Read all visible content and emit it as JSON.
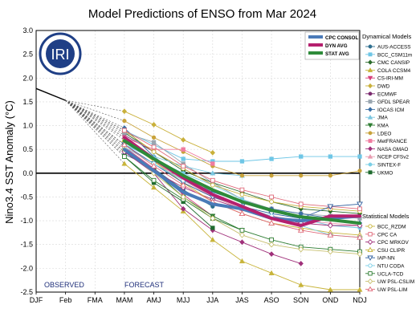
{
  "chart_data": {
    "type": "line",
    "title": "Model Predictions of ENSO from Mar 2024",
    "ylabel": "Nino3.4 SST Anomaly (°C)",
    "xlabel": "",
    "categories": [
      "DJF",
      "Feb",
      "FMA",
      "MAM",
      "AMJ",
      "MJJ",
      "JJA",
      "JAS",
      "ASO",
      "SON",
      "OND",
      "NDJ"
    ],
    "ylim": [
      -2.5,
      3.0
    ],
    "yticks": [
      "-2.5",
      "-2.0",
      "-1.5",
      "-1.0",
      "-0.5",
      "0.0",
      "0.5",
      "1.0",
      "1.5",
      "2.0",
      "2.5",
      "3.0"
    ],
    "grid": true,
    "observed_label": "OBSERVED",
    "forecast_label": "FORECAST",
    "logo_text": "IRI",
    "observed": {
      "x": [
        0,
        1
      ],
      "y": [
        1.78,
        1.53
      ]
    },
    "avg_legend_title": "",
    "avg_series": [
      {
        "name": "CPC CONSOL",
        "color": "#4a7ab8",
        "x": [
          3,
          4,
          5,
          6,
          7,
          8,
          9,
          10,
          11
        ],
        "y": [
          0.5,
          0.05,
          -0.4,
          -0.65,
          -0.75,
          -0.95,
          -1.0,
          -0.95,
          -0.9
        ]
      },
      {
        "name": "DYN AVG",
        "color": "#b5206e",
        "x": [
          3,
          4,
          5,
          6,
          7,
          8,
          9,
          10,
          11
        ],
        "y": [
          0.75,
          0.3,
          -0.1,
          -0.45,
          -0.7,
          -0.95,
          -1.1,
          -0.9,
          -0.9
        ]
      },
      {
        "name": "STAT AVG",
        "color": "#2e8b3a",
        "x": [
          3,
          4,
          5,
          6,
          7,
          8,
          9,
          10,
          11
        ],
        "y": [
          0.68,
          0.3,
          -0.05,
          -0.35,
          -0.6,
          -0.78,
          -0.92,
          -0.98,
          -1.05
        ]
      }
    ],
    "dynamical_title": "Dynamical Models",
    "dynamical_models": [
      {
        "name": "AUS-ACCESS",
        "color": "#2f6f8f",
        "marker": "circle",
        "x": [
          3,
          4,
          5,
          6
        ],
        "y": [
          0.4,
          0.1,
          -0.35,
          -0.7
        ]
      },
      {
        "name": "BCC_CSM11m",
        "color": "#6ec6e6",
        "marker": "square",
        "x": [
          3,
          4,
          5,
          6,
          7,
          8,
          9,
          10,
          11
        ],
        "y": [
          0.9,
          0.6,
          0.3,
          0.25,
          0.25,
          0.3,
          0.35,
          0.35,
          0.35
        ]
      },
      {
        "name": "CMC CANSIP",
        "color": "#2b6b2b",
        "marker": "diamond",
        "x": [
          3,
          4,
          5,
          6,
          7,
          8,
          9,
          10,
          11
        ],
        "y": [
          0.85,
          0.45,
          0.05,
          -0.2,
          -0.4,
          -0.6,
          -0.75,
          -0.8,
          -0.85
        ]
      },
      {
        "name": "COLA CCSM4",
        "color": "#c8b43a",
        "marker": "triangle-up",
        "x": [
          3,
          4,
          5,
          6,
          7,
          8,
          9,
          10,
          11
        ],
        "y": [
          0.2,
          -0.3,
          -0.8,
          -1.4,
          -1.85,
          -2.1,
          -2.35,
          -2.45,
          -2.45
        ]
      },
      {
        "name": "CS-IRI-MM",
        "color": "#d6407a",
        "marker": "triangle-down",
        "x": [
          3,
          4,
          5,
          6
        ],
        "y": [
          0.55,
          0.1,
          -0.45,
          -0.9
        ]
      },
      {
        "name": "DWD",
        "color": "#c9b03a",
        "marker": "diamond",
        "x": [
          3,
          4,
          5,
          6
        ],
        "y": [
          1.3,
          1.02,
          0.7,
          0.43
        ]
      },
      {
        "name": "ECMWF",
        "color": "#7a2a6e",
        "marker": "circle",
        "x": [
          3,
          4,
          5,
          6
        ],
        "y": [
          0.8,
          0.45,
          0.1,
          -0.25
        ]
      },
      {
        "name": "GFDL SPEAR",
        "color": "#9aa6b0",
        "marker": "square",
        "x": [
          3,
          4,
          5,
          6,
          7,
          8,
          9,
          10,
          11
        ],
        "y": [
          0.85,
          0.65,
          0.2,
          -0.2,
          -0.55,
          -0.75,
          -0.85,
          -0.9,
          -0.95
        ]
      },
      {
        "name": "IOCAS ICM",
        "color": "#3a6ea5",
        "marker": "diamond",
        "x": [
          3,
          4,
          5,
          6,
          7,
          8,
          9,
          10,
          11
        ],
        "y": [
          0.95,
          0.35,
          -0.1,
          -0.4,
          -0.6,
          -0.75,
          -0.85,
          -0.95,
          -1.05
        ]
      },
      {
        "name": "JMA",
        "color": "#7ac6e0",
        "marker": "triangle-up",
        "x": [
          3,
          4,
          5,
          6,
          7
        ],
        "y": [
          0.6,
          0.35,
          0.15,
          0.0,
          -0.05
        ]
      },
      {
        "name": "KMA",
        "color": "#2e7d32",
        "marker": "triangle-down",
        "x": [
          3,
          4,
          5,
          6,
          7
        ],
        "y": [
          0.45,
          0.05,
          -0.5,
          -0.9,
          -1.2
        ]
      },
      {
        "name": "LDEO",
        "color": "#c8a23a",
        "marker": "circle",
        "x": [
          3,
          4,
          5,
          6,
          7,
          8,
          9,
          10,
          11
        ],
        "y": [
          1.1,
          0.75,
          0.45,
          0.15,
          -0.05,
          -0.05,
          -0.05,
          -0.05,
          0.05
        ]
      },
      {
        "name": "MetFRANCE",
        "color": "#f07ca0",
        "marker": "square",
        "x": [
          3,
          4,
          5,
          6
        ],
        "y": [
          0.75,
          0.5,
          0.5,
          0.2
        ]
      },
      {
        "name": "NASA GMAO",
        "color": "#a0307a",
        "marker": "diamond",
        "x": [
          3,
          4,
          5,
          6,
          7,
          8,
          9
        ],
        "y": [
          0.45,
          0.0,
          -0.75,
          -1.2,
          -1.45,
          -1.7,
          -1.9
        ]
      },
      {
        "name": "NCEP CFSv2",
        "color": "#e89cb0",
        "marker": "triangle-up",
        "x": [
          3,
          4,
          5,
          6,
          7,
          8,
          9,
          10,
          11
        ],
        "y": [
          0.75,
          0.25,
          -0.15,
          -0.5,
          -0.75,
          -0.9,
          -1.0,
          -1.05,
          -1.1
        ]
      },
      {
        "name": "SINTEX-F",
        "color": "#7acfe6",
        "marker": "circle",
        "x": [
          3,
          4,
          5,
          6,
          7,
          8,
          9,
          10,
          11
        ],
        "y": [
          0.6,
          0.3,
          0.0,
          -0.25,
          -0.55,
          -0.8,
          -0.95,
          -1.1,
          -1.15
        ]
      },
      {
        "name": "UKMO",
        "color": "#1e6b2e",
        "marker": "square",
        "x": [
          3,
          4,
          5,
          6
        ],
        "y": [
          0.35,
          -0.2,
          -0.6,
          -1.15
        ]
      }
    ],
    "statistical_title": "Statistical Models",
    "statistical_models": [
      {
        "name": "BCC_RZDM",
        "color": "#c8b43a",
        "marker": "circle-open",
        "x": [
          3,
          4,
          5,
          6,
          7,
          8,
          9,
          10,
          11
        ],
        "y": [
          0.9,
          0.45,
          0.1,
          -0.25,
          -0.45,
          -0.6,
          -0.7,
          -0.75,
          -0.8
        ]
      },
      {
        "name": "CPC CA",
        "color": "#e06a7a",
        "marker": "square-open",
        "x": [
          3,
          4,
          5,
          6,
          7,
          8,
          9,
          10,
          11
        ],
        "y": [
          0.9,
          0.55,
          0.15,
          -0.15,
          -0.35,
          -0.5,
          -0.65,
          -0.7,
          -0.75
        ]
      },
      {
        "name": "CPC MRKOV",
        "color": "#a0307a",
        "marker": "diamond-open",
        "x": [
          3,
          4,
          5,
          6,
          7,
          8,
          9,
          10,
          11
        ],
        "y": [
          0.45,
          0.05,
          -0.3,
          -0.55,
          -0.75,
          -0.9,
          -1.05,
          -1.1,
          -1.1
        ]
      },
      {
        "name": "CSU CLIPR",
        "color": "#c8b43a",
        "marker": "triangle-up-open",
        "x": [
          3,
          4,
          5,
          6,
          7,
          8,
          9,
          10,
          11
        ],
        "y": [
          0.7,
          0.25,
          -0.2,
          -0.6,
          -0.85,
          -1.05,
          -1.15,
          -1.25,
          -1.3
        ]
      },
      {
        "name": "IAP-NN",
        "color": "#2f5f9f",
        "marker": "triangle-down-open",
        "x": [
          3,
          4,
          5,
          6,
          7,
          8,
          9,
          10,
          11
        ],
        "y": [
          0.6,
          0.2,
          -0.2,
          -0.5,
          -0.7,
          -0.85,
          -0.95,
          -0.7,
          -0.65
        ]
      },
      {
        "name": "NTU CODA",
        "color": "#7acfe6",
        "marker": "circle-open",
        "x": [
          3,
          4,
          5,
          6,
          7,
          8,
          9,
          10,
          11
        ],
        "y": [
          0.55,
          0.2,
          -0.15,
          -0.45,
          -0.7,
          -0.9,
          -1.1,
          -1.3,
          -1.35
        ]
      },
      {
        "name": "UCLA-TCD",
        "color": "#2e7d32",
        "marker": "square-open",
        "x": [
          3,
          4,
          5,
          6,
          7,
          8,
          9,
          10,
          11
        ],
        "y": [
          0.35,
          -0.15,
          -0.55,
          -0.95,
          -1.2,
          -1.4,
          -1.55,
          -1.6,
          -1.65
        ]
      },
      {
        "name": "UW PSL-CSLIM",
        "color": "#c8c070",
        "marker": "diamond-open",
        "x": [
          3,
          4,
          5,
          6,
          7,
          8,
          9,
          10,
          11
        ],
        "y": [
          0.5,
          0.0,
          -0.5,
          -0.95,
          -1.3,
          -1.5,
          -1.6,
          -1.65,
          -1.7
        ]
      },
      {
        "name": "UW PSL-LIM",
        "color": "#e06a7a",
        "marker": "triangle-up-open",
        "x": [
          3,
          4,
          5,
          6,
          7,
          8,
          9,
          10,
          11
        ],
        "y": [
          0.6,
          0.15,
          -0.25,
          -0.6,
          -0.85,
          -1.05,
          -1.2,
          -1.3,
          -1.35
        ]
      }
    ]
  }
}
